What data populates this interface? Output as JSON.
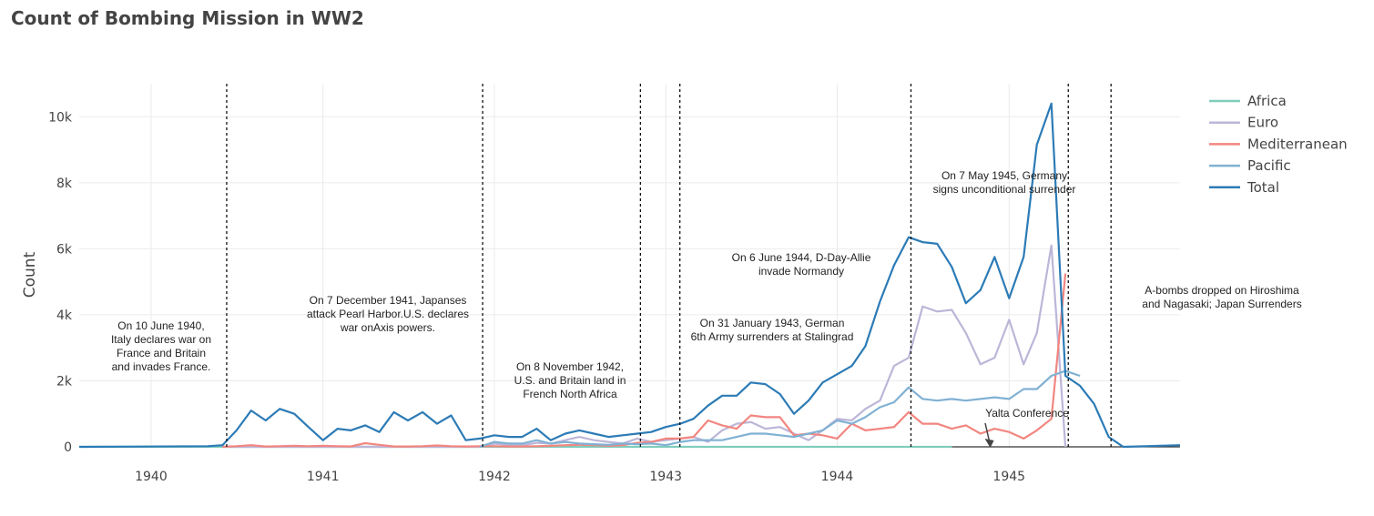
{
  "chart_data": {
    "type": "line",
    "title": "Count of Bombing Mission in WW2",
    "ylabel": "Count",
    "xlabel": "",
    "ylim": [
      0,
      11000
    ],
    "xlim": [
      "1939-08-01",
      "1945-12-31"
    ],
    "grid": true,
    "legend_position": "top-right",
    "x_ticks": [
      "1940",
      "1941",
      "1942",
      "1943",
      "1944",
      "1945"
    ],
    "y_ticks": [
      {
        "value": 0,
        "label": "0"
      },
      {
        "value": 2000,
        "label": "2k"
      },
      {
        "value": 4000,
        "label": "4k"
      },
      {
        "value": 6000,
        "label": "6k"
      },
      {
        "value": 8000,
        "label": "8k"
      },
      {
        "value": 10000,
        "label": "10k"
      }
    ],
    "series": [
      {
        "name": "Africa",
        "color": "#7fcdbb",
        "points": [
          [
            "1939-08-01",
            0
          ],
          [
            "1944-09-01",
            0
          ]
        ]
      },
      {
        "name": "Euro",
        "color": "#bcb6d8",
        "points": [
          [
            "1940-06-01",
            0
          ],
          [
            "1941-12-01",
            0
          ],
          [
            "1942-01-01",
            90
          ],
          [
            "1942-02-01",
            60
          ],
          [
            "1942-03-01",
            40
          ],
          [
            "1942-04-01",
            120
          ],
          [
            "1942-05-01",
            100
          ],
          [
            "1942-06-01",
            200
          ],
          [
            "1942-07-01",
            300
          ],
          [
            "1942-08-01",
            200
          ],
          [
            "1942-09-01",
            150
          ],
          [
            "1942-10-01",
            100
          ],
          [
            "1942-11-01",
            250
          ],
          [
            "1942-12-01",
            150
          ],
          [
            "1943-01-01",
            200
          ],
          [
            "1943-02-01",
            250
          ],
          [
            "1943-03-01",
            300
          ],
          [
            "1943-04-01",
            150
          ],
          [
            "1943-05-01",
            500
          ],
          [
            "1943-06-01",
            700
          ],
          [
            "1943-07-01",
            750
          ],
          [
            "1943-08-01",
            550
          ],
          [
            "1943-09-01",
            600
          ],
          [
            "1943-10-01",
            400
          ],
          [
            "1943-11-01",
            200
          ],
          [
            "1943-12-01",
            500
          ],
          [
            "1944-01-01",
            850
          ],
          [
            "1944-02-01",
            800
          ],
          [
            "1944-03-01",
            1150
          ],
          [
            "1944-04-01",
            1400
          ],
          [
            "1944-05-01",
            2450
          ],
          [
            "1944-06-01",
            2700
          ],
          [
            "1944-07-01",
            4250
          ],
          [
            "1944-08-01",
            4100
          ],
          [
            "1944-09-01",
            4150
          ],
          [
            "1944-10-01",
            3450
          ],
          [
            "1944-11-01",
            2500
          ],
          [
            "1944-12-01",
            2700
          ],
          [
            "1945-01-01",
            3850
          ],
          [
            "1945-02-01",
            2500
          ],
          [
            "1945-03-01",
            3450
          ],
          [
            "1945-04-01",
            6100
          ],
          [
            "1945-05-01",
            0
          ]
        ]
      },
      {
        "name": "Mediterranean",
        "color": "#f28680",
        "points": [
          [
            "1940-06-01",
            0
          ],
          [
            "1940-07-01",
            20
          ],
          [
            "1940-08-01",
            50
          ],
          [
            "1940-09-01",
            10
          ],
          [
            "1940-10-01",
            20
          ],
          [
            "1940-11-01",
            30
          ],
          [
            "1940-12-01",
            20
          ],
          [
            "1941-01-01",
            30
          ],
          [
            "1941-02-01",
            20
          ],
          [
            "1941-03-01",
            10
          ],
          [
            "1941-04-01",
            110
          ],
          [
            "1941-05-01",
            60
          ],
          [
            "1941-06-01",
            10
          ],
          [
            "1941-07-01",
            10
          ],
          [
            "1941-08-01",
            20
          ],
          [
            "1941-09-01",
            40
          ],
          [
            "1941-10-01",
            20
          ],
          [
            "1941-11-01",
            10
          ],
          [
            "1941-12-01",
            20
          ],
          [
            "1942-01-01",
            20
          ],
          [
            "1942-02-01",
            10
          ],
          [
            "1942-03-01",
            10
          ],
          [
            "1942-04-01",
            20
          ],
          [
            "1942-05-01",
            30
          ],
          [
            "1942-06-01",
            50
          ],
          [
            "1942-07-01",
            60
          ],
          [
            "1942-08-01",
            50
          ],
          [
            "1942-09-01",
            30
          ],
          [
            "1942-10-01",
            50
          ],
          [
            "1942-11-01",
            120
          ],
          [
            "1942-12-01",
            150
          ],
          [
            "1943-01-01",
            250
          ],
          [
            "1943-02-01",
            250
          ],
          [
            "1943-03-01",
            300
          ],
          [
            "1943-04-01",
            800
          ],
          [
            "1943-05-01",
            650
          ],
          [
            "1943-06-01",
            550
          ],
          [
            "1943-07-01",
            950
          ],
          [
            "1943-08-01",
            900
          ],
          [
            "1943-09-01",
            900
          ],
          [
            "1943-10-01",
            350
          ],
          [
            "1943-11-01",
            400
          ],
          [
            "1943-12-01",
            350
          ],
          [
            "1944-01-01",
            250
          ],
          [
            "1944-02-01",
            700
          ],
          [
            "1944-03-01",
            500
          ],
          [
            "1944-04-01",
            550
          ],
          [
            "1944-05-01",
            600
          ],
          [
            "1944-06-01",
            1050
          ],
          [
            "1944-07-01",
            700
          ],
          [
            "1944-08-01",
            700
          ],
          [
            "1944-09-01",
            550
          ],
          [
            "1944-10-01",
            650
          ],
          [
            "1944-11-01",
            400
          ],
          [
            "1944-12-01",
            550
          ],
          [
            "1945-01-01",
            450
          ],
          [
            "1945-02-01",
            250
          ],
          [
            "1945-03-01",
            500
          ],
          [
            "1945-04-01",
            850
          ],
          [
            "1945-05-01",
            5250
          ]
        ]
      },
      {
        "name": "Pacific",
        "color": "#80b1d3",
        "points": [
          [
            "1941-12-01",
            0
          ],
          [
            "1942-01-01",
            150
          ],
          [
            "1942-02-01",
            100
          ],
          [
            "1942-03-01",
            100
          ],
          [
            "1942-04-01",
            200
          ],
          [
            "1942-05-01",
            100
          ],
          [
            "1942-06-01",
            150
          ],
          [
            "1942-07-01",
            100
          ],
          [
            "1942-08-01",
            80
          ],
          [
            "1942-09-01",
            60
          ],
          [
            "1942-10-01",
            100
          ],
          [
            "1942-11-01",
            80
          ],
          [
            "1942-12-01",
            100
          ],
          [
            "1943-01-01",
            50
          ],
          [
            "1943-02-01",
            150
          ],
          [
            "1943-03-01",
            200
          ],
          [
            "1943-04-01",
            200
          ],
          [
            "1943-05-01",
            200
          ],
          [
            "1943-06-01",
            300
          ],
          [
            "1943-07-01",
            400
          ],
          [
            "1943-08-01",
            400
          ],
          [
            "1943-09-01",
            350
          ],
          [
            "1943-10-01",
            300
          ],
          [
            "1943-11-01",
            400
          ],
          [
            "1943-12-01",
            500
          ],
          [
            "1944-01-01",
            800
          ],
          [
            "1944-02-01",
            700
          ],
          [
            "1944-03-01",
            900
          ],
          [
            "1944-04-01",
            1200
          ],
          [
            "1944-05-01",
            1350
          ],
          [
            "1944-06-01",
            1800
          ],
          [
            "1944-07-01",
            1450
          ],
          [
            "1944-08-01",
            1400
          ],
          [
            "1944-09-01",
            1450
          ],
          [
            "1944-10-01",
            1400
          ],
          [
            "1944-11-01",
            1450
          ],
          [
            "1944-12-01",
            1500
          ],
          [
            "1945-01-01",
            1450
          ],
          [
            "1945-02-01",
            1750
          ],
          [
            "1945-03-01",
            1750
          ],
          [
            "1945-04-01",
            2150
          ],
          [
            "1945-05-01",
            2300
          ],
          [
            "1945-06-01",
            2150
          ]
        ]
      },
      {
        "name": "Total",
        "color": "#2c7bb6",
        "points": [
          [
            "1939-08-01",
            0
          ],
          [
            "1940-05-01",
            20
          ],
          [
            "1940-06-01",
            50
          ],
          [
            "1940-07-01",
            500
          ],
          [
            "1940-08-01",
            1100
          ],
          [
            "1940-09-01",
            800
          ],
          [
            "1940-10-01",
            1150
          ],
          [
            "1940-11-01",
            1000
          ],
          [
            "1940-12-01",
            600
          ],
          [
            "1941-01-01",
            200
          ],
          [
            "1941-02-01",
            550
          ],
          [
            "1941-03-01",
            500
          ],
          [
            "1941-04-01",
            650
          ],
          [
            "1941-05-01",
            450
          ],
          [
            "1941-06-01",
            1050
          ],
          [
            "1941-07-01",
            800
          ],
          [
            "1941-08-01",
            1050
          ],
          [
            "1941-09-01",
            700
          ],
          [
            "1941-10-01",
            950
          ],
          [
            "1941-11-01",
            200
          ],
          [
            "1941-12-01",
            250
          ],
          [
            "1942-01-01",
            350
          ],
          [
            "1942-02-01",
            300
          ],
          [
            "1942-03-01",
            300
          ],
          [
            "1942-04-01",
            550
          ],
          [
            "1942-05-01",
            200
          ],
          [
            "1942-06-01",
            400
          ],
          [
            "1942-07-01",
            500
          ],
          [
            "1942-08-01",
            400
          ],
          [
            "1942-09-01",
            300
          ],
          [
            "1942-10-01",
            350
          ],
          [
            "1942-11-01",
            400
          ],
          [
            "1942-12-01",
            450
          ],
          [
            "1943-01-01",
            600
          ],
          [
            "1943-02-01",
            700
          ],
          [
            "1943-03-01",
            850
          ],
          [
            "1943-04-01",
            1250
          ],
          [
            "1943-05-01",
            1550
          ],
          [
            "1943-06-01",
            1550
          ],
          [
            "1943-07-01",
            1950
          ],
          [
            "1943-08-01",
            1900
          ],
          [
            "1943-09-01",
            1600
          ],
          [
            "1943-10-01",
            1000
          ],
          [
            "1943-11-01",
            1400
          ],
          [
            "1943-12-01",
            1950
          ],
          [
            "1944-01-01",
            2200
          ],
          [
            "1944-02-01",
            2450
          ],
          [
            "1944-03-01",
            3050
          ],
          [
            "1944-04-01",
            4400
          ],
          [
            "1944-05-01",
            5500
          ],
          [
            "1944-06-01",
            6350
          ],
          [
            "1944-07-01",
            6200
          ],
          [
            "1944-08-01",
            6150
          ],
          [
            "1944-09-01",
            5450
          ],
          [
            "1944-10-01",
            4350
          ],
          [
            "1944-11-01",
            4750
          ],
          [
            "1944-12-01",
            5750
          ],
          [
            "1945-01-01",
            4500
          ],
          [
            "1945-02-01",
            5750
          ],
          [
            "1945-03-01",
            9150
          ],
          [
            "1945-04-01",
            10400
          ],
          [
            "1945-05-01",
            2150
          ],
          [
            "1945-06-01",
            1850
          ],
          [
            "1945-07-01",
            1300
          ],
          [
            "1945-08-01",
            300
          ],
          [
            "1945-09-01",
            0
          ],
          [
            "1945-12-31",
            50
          ]
        ]
      }
    ],
    "events": [
      {
        "date": "1940-06-10",
        "text": [
          "On 10 June 1940,",
          "Italy declares war on",
          "France and Britain",
          "and invades France."
        ]
      },
      {
        "date": "1941-12-07",
        "text": [
          "On 7 December 1941, Japanses",
          "attack Pearl Harbor.U.S. declares",
          "war onAxis powers."
        ]
      },
      {
        "date": "1942-11-08",
        "text": [
          "On 8 November 1942,",
          "U.S. and Britain land in",
          "French North Africa"
        ]
      },
      {
        "date": "1943-01-31",
        "text": [
          "On 31 January 1943, German",
          "6th Army surrenders at Stalingrad"
        ]
      },
      {
        "date": "1944-06-06",
        "text": [
          "On 6 June 1944, D-Day-Allie",
          "invade Normandy"
        ]
      },
      {
        "date": "1945-05-07",
        "text": [
          "On 7 May 1945, Germany",
          "signs unconditional surrender"
        ]
      },
      {
        "date": "1945-08-06",
        "text": [
          "A-bombs dropped on Hiroshima",
          "and Nagasaki; Japan Surrenders"
        ]
      }
    ],
    "arrow_annotation": {
      "text": "Yalta Conference",
      "date": "1944-11-20",
      "value": 0
    }
  }
}
